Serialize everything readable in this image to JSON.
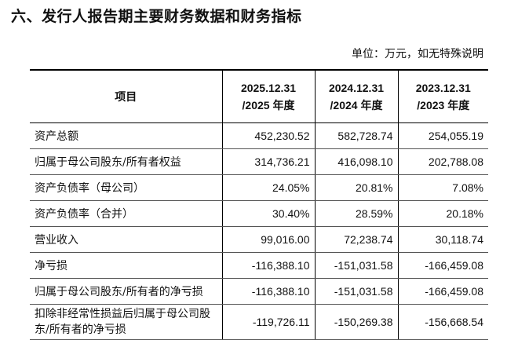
{
  "title": "六、发行人报告期主要财务数据和财务指标",
  "unit_note": "单位：万元，如无特殊说明",
  "table": {
    "headers": [
      {
        "line1": "项目",
        "line2": ""
      },
      {
        "line1": "2025.12.31",
        "line2": "/2025 年度"
      },
      {
        "line1": "2024.12.31",
        "line2": "/2024 年度"
      },
      {
        "line1": "2023.12.31",
        "line2": "/2023 年度"
      }
    ],
    "rows": [
      {
        "label": "资产总额",
        "v2025": "452,230.52",
        "v2024": "582,728.74",
        "v2023": "254,055.19"
      },
      {
        "label": "归属于母公司股东/所有者权益",
        "v2025": "314,736.21",
        "v2024": "416,098.10",
        "v2023": "202,788.08"
      },
      {
        "label": "资产负债率（母公司）",
        "v2025": "24.05%",
        "v2024": "20.81%",
        "v2023": "7.08%"
      },
      {
        "label": "资产负债率（合并）",
        "v2025": "30.40%",
        "v2024": "28.59%",
        "v2023": "20.18%"
      },
      {
        "label": "营业收入",
        "v2025": "99,016.00",
        "v2024": "72,238.74",
        "v2023": "30,118.74"
      },
      {
        "label": "净亏损",
        "v2025": "-116,388.10",
        "v2024": "-151,031.58",
        "v2023": "-166,459.08"
      },
      {
        "label": "归属于母公司股东/所有者的净亏损",
        "v2025": "-116,388.10",
        "v2024": "-151,031.58",
        "v2023": "-166,459.08"
      },
      {
        "label": "扣除非经常性损益后归属于母公司股东/所有者的净亏损",
        "v2025": "-119,726.11",
        "v2024": "-150,269.38",
        "v2023": "-156,668.54"
      }
    ]
  }
}
